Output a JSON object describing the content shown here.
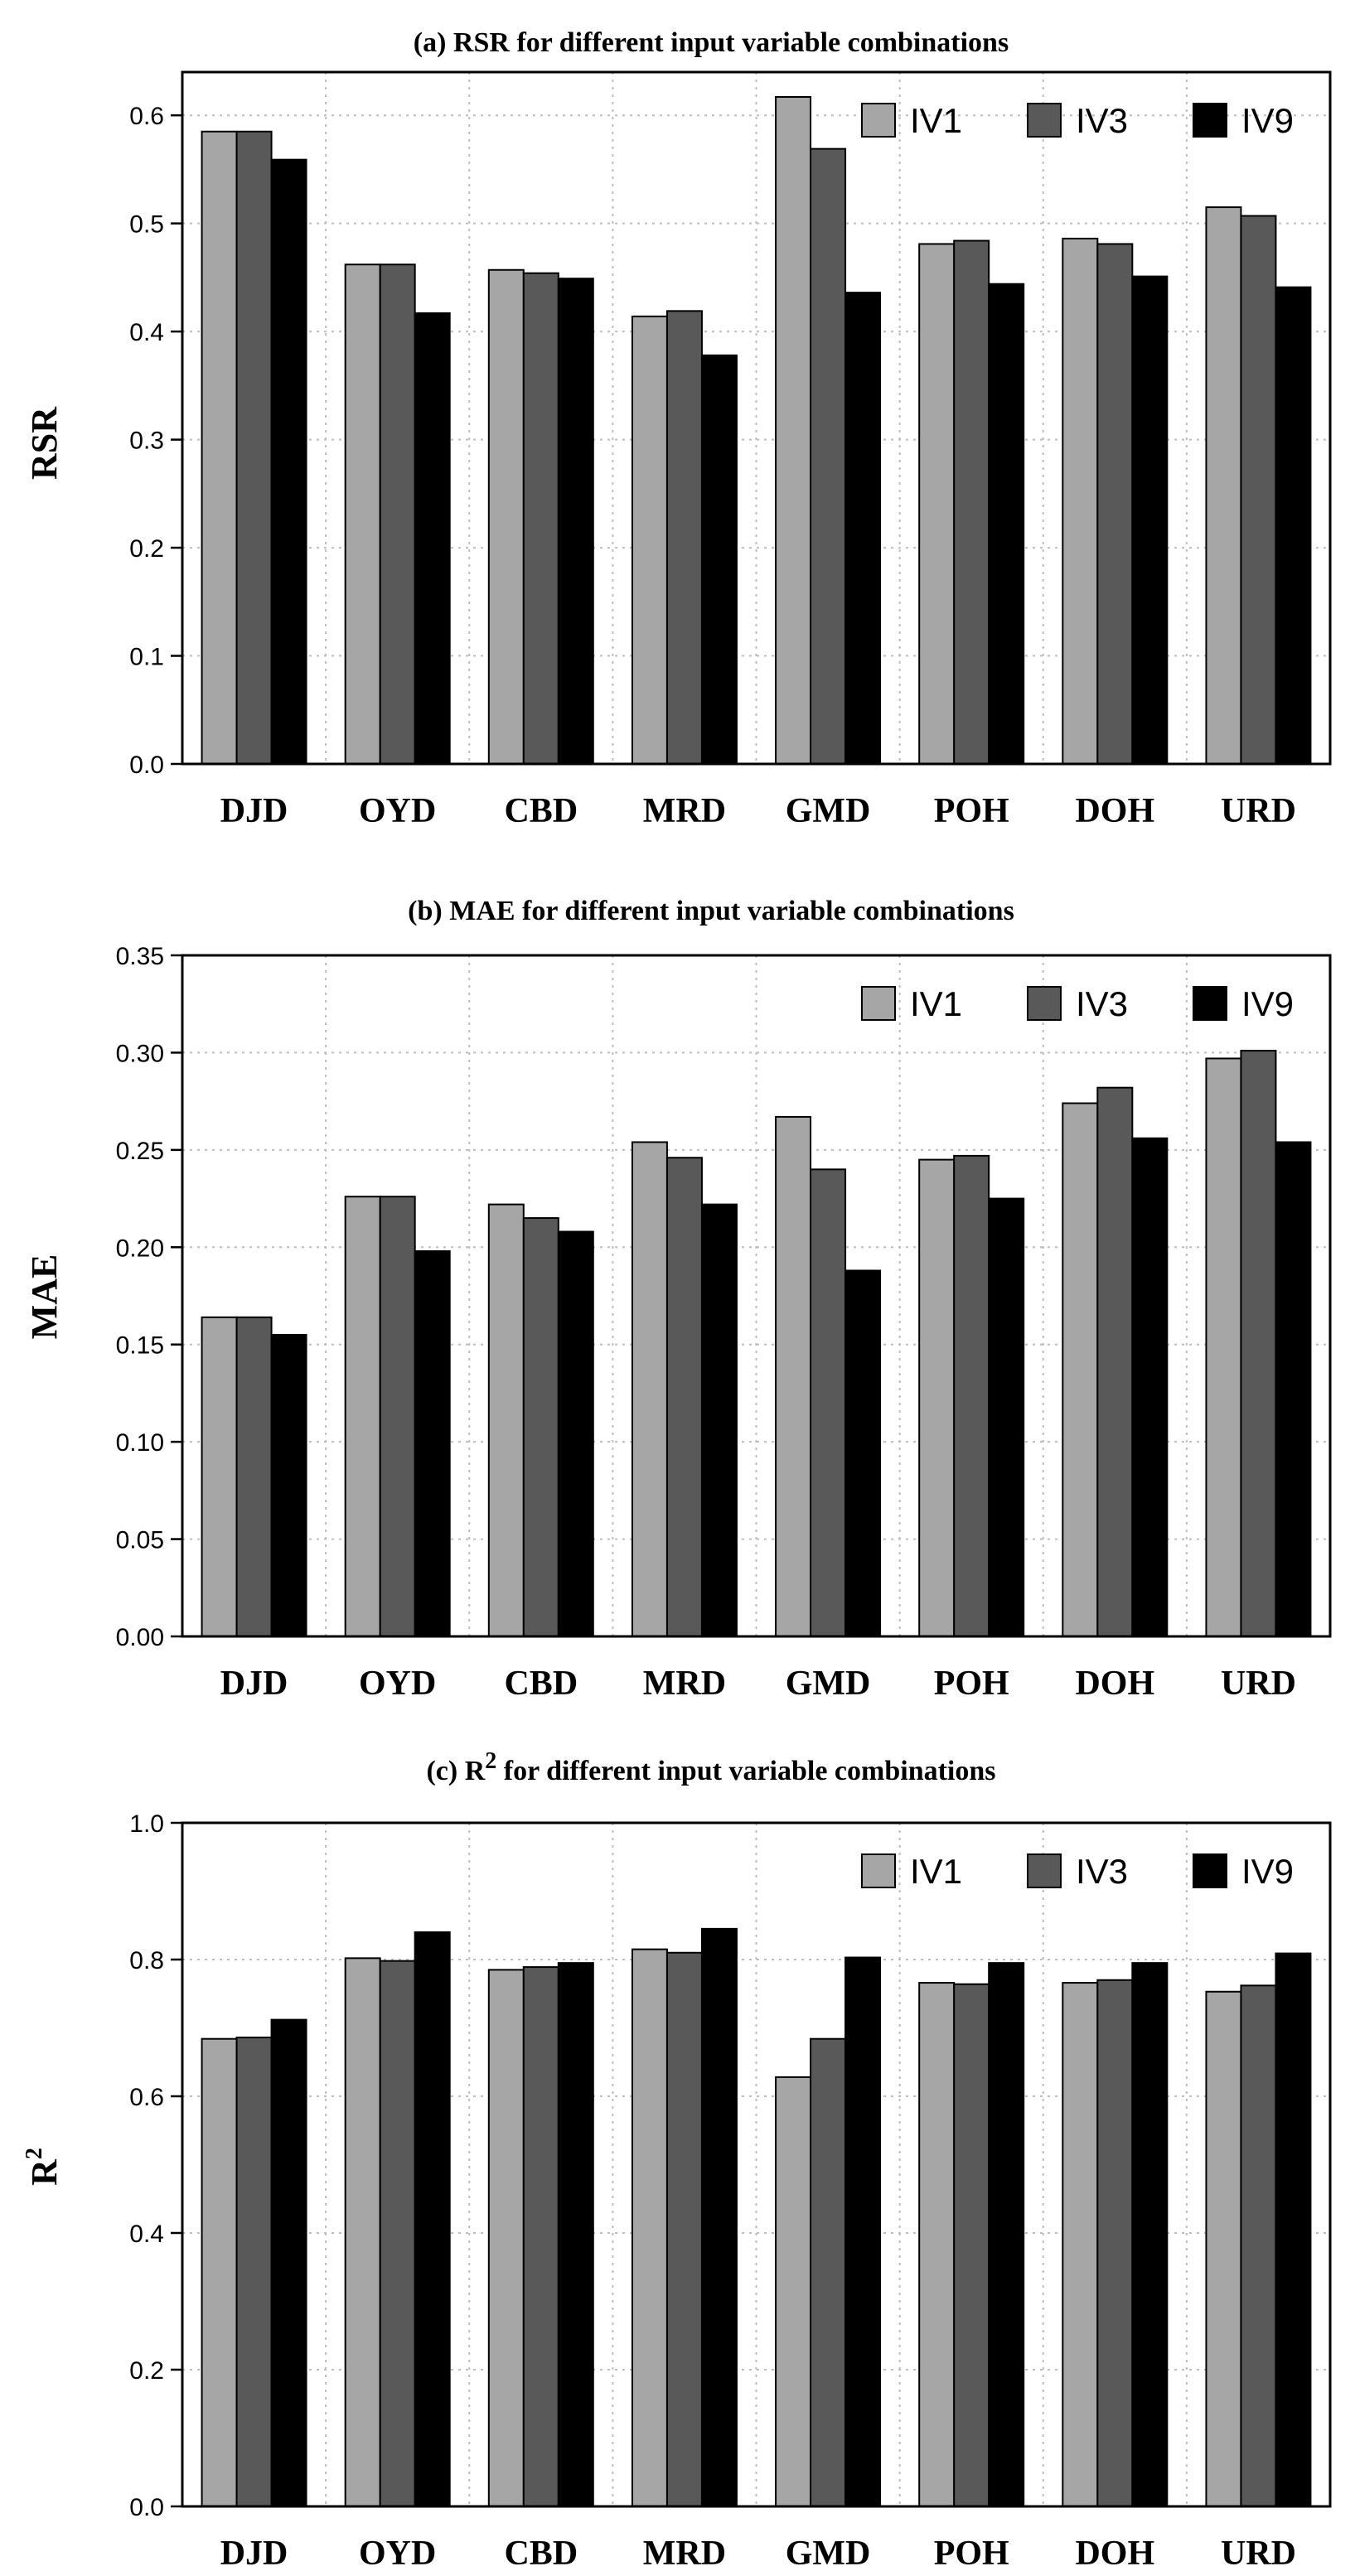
{
  "chart_data": [
    {
      "type": "bar",
      "title": "(a) RSR for different input variable combinations",
      "ylabel": "RSR",
      "ylim": [
        0,
        0.64
      ],
      "yticks": [
        "0.0",
        "0.1",
        "0.2",
        "0.3",
        "0.4",
        "0.5",
        "0.6"
      ],
      "grid": true,
      "legend_position": "top-right",
      "categories": [
        "DJD",
        "OYD",
        "CBD",
        "MRD",
        "GMD",
        "POH",
        "DOH",
        "URD"
      ],
      "series": [
        {
          "name": "IV1",
          "color": "#a6a6a6",
          "values": [
            0.585,
            0.462,
            0.457,
            0.414,
            0.617,
            0.481,
            0.486,
            0.515
          ]
        },
        {
          "name": "IV3",
          "color": "#595959",
          "values": [
            0.585,
            0.462,
            0.454,
            0.419,
            0.569,
            0.484,
            0.481,
            0.507
          ]
        },
        {
          "name": "IV9",
          "color": "#000000",
          "values": [
            0.559,
            0.417,
            0.449,
            0.378,
            0.436,
            0.444,
            0.451,
            0.441
          ]
        }
      ]
    },
    {
      "type": "bar",
      "title": "(b) MAE for different input variable combinations",
      "ylabel": "MAE",
      "ylim": [
        0,
        0.35
      ],
      "yticks": [
        "0.00",
        "0.05",
        "0.10",
        "0.15",
        "0.20",
        "0.25",
        "0.30",
        "0.35"
      ],
      "grid": true,
      "legend_position": "top-right",
      "categories": [
        "DJD",
        "OYD",
        "CBD",
        "MRD",
        "GMD",
        "POH",
        "DOH",
        "URD"
      ],
      "series": [
        {
          "name": "IV1",
          "color": "#a6a6a6",
          "values": [
            0.164,
            0.226,
            0.222,
            0.254,
            0.267,
            0.245,
            0.274,
            0.297
          ]
        },
        {
          "name": "IV3",
          "color": "#595959",
          "values": [
            0.164,
            0.226,
            0.215,
            0.246,
            0.24,
            0.247,
            0.282,
            0.301
          ]
        },
        {
          "name": "IV9",
          "color": "#000000",
          "values": [
            0.155,
            0.198,
            0.208,
            0.222,
            0.188,
            0.225,
            0.256,
            0.254
          ]
        }
      ]
    },
    {
      "type": "bar",
      "title_main": "(c) R",
      "title_sup": "2",
      "title_rest": " for different input variable combinations",
      "ylabel_main": "R",
      "ylabel_sup": "2",
      "ylim": [
        0,
        1.0
      ],
      "yticks": [
        "0.0",
        "0.2",
        "0.4",
        "0.6",
        "0.8",
        "1.0"
      ],
      "grid": true,
      "legend_position": "top-right",
      "categories": [
        "DJD",
        "OYD",
        "CBD",
        "MRD",
        "GMD",
        "POH",
        "DOH",
        "URD"
      ],
      "series": [
        {
          "name": "IV1",
          "color": "#a6a6a6",
          "values": [
            0.684,
            0.802,
            0.785,
            0.815,
            0.628,
            0.766,
            0.766,
            0.753
          ]
        },
        {
          "name": "IV3",
          "color": "#595959",
          "values": [
            0.686,
            0.798,
            0.789,
            0.81,
            0.684,
            0.764,
            0.77,
            0.762
          ]
        },
        {
          "name": "IV9",
          "color": "#000000",
          "values": [
            0.712,
            0.84,
            0.795,
            0.845,
            0.803,
            0.795,
            0.795,
            0.809
          ]
        }
      ]
    }
  ]
}
